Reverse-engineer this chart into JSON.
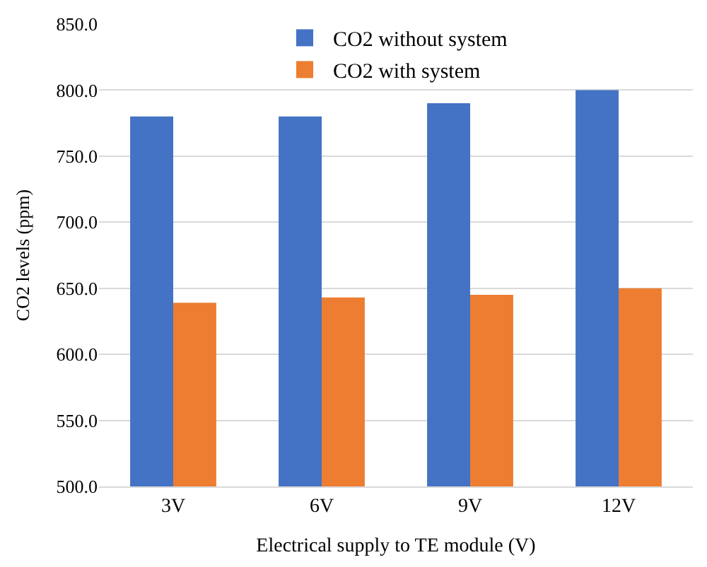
{
  "chart_data": {
    "type": "bar",
    "xlabel": "Electrical supply to TE module (V)",
    "ylabel": "CO2 levels (ppm)",
    "categories": [
      "3V",
      "6V",
      "9V",
      "12V"
    ],
    "series": [
      {
        "name": "CO2 without system",
        "color": "#4472c4",
        "values": [
          780,
          780,
          790,
          800
        ]
      },
      {
        "name": "CO2 with system",
        "color": "#ed7d31",
        "values": [
          639,
          643,
          645,
          650
        ]
      }
    ],
    "ylim": [
      500,
      850
    ],
    "yticks": [
      {
        "value": 500,
        "label": "500.0"
      },
      {
        "value": 550,
        "label": "550.0"
      },
      {
        "value": 600,
        "label": "600.0"
      },
      {
        "value": 650,
        "label": "650.0"
      },
      {
        "value": 700,
        "label": "700.0"
      },
      {
        "value": 750,
        "label": "750.0"
      },
      {
        "value": 800,
        "label": "800.0"
      },
      {
        "value": 850,
        "label": "850.0"
      }
    ],
    "grid": "y",
    "legend": "top"
  }
}
